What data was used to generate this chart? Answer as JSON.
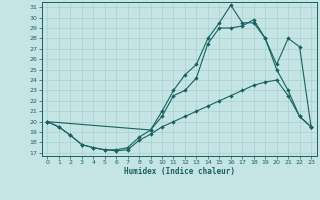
{
  "xlabel": "Humidex (Indice chaleur)",
  "bg_color": "#c5e5e5",
  "line_color": "#1a6060",
  "grid_color": "#a8d0d0",
  "xlim_min": -0.5,
  "xlim_max": 23.5,
  "ylim_min": 16.7,
  "ylim_max": 31.5,
  "xticks": [
    0,
    1,
    2,
    3,
    4,
    5,
    6,
    7,
    8,
    9,
    10,
    11,
    12,
    13,
    14,
    15,
    16,
    17,
    18,
    19,
    20,
    21,
    22,
    23
  ],
  "yticks": [
    17,
    18,
    19,
    20,
    21,
    22,
    23,
    24,
    25,
    26,
    27,
    28,
    29,
    30,
    31
  ],
  "s1_x": [
    0,
    1,
    2,
    3,
    4,
    5,
    6,
    7,
    8,
    9,
    10,
    11,
    12,
    13,
    14,
    15,
    16,
    17,
    18,
    19,
    20,
    21,
    22,
    23
  ],
  "s1_y": [
    20.0,
    19.5,
    18.7,
    17.8,
    17.5,
    17.3,
    17.2,
    17.3,
    18.2,
    18.8,
    19.5,
    20.0,
    20.5,
    21.0,
    21.5,
    22.0,
    22.5,
    23.0,
    23.5,
    23.8,
    24.0,
    22.5,
    20.5,
    19.5
  ],
  "s2_x": [
    0,
    1,
    2,
    3,
    4,
    5,
    6,
    7,
    8,
    9,
    10,
    11,
    12,
    13,
    14,
    15,
    16,
    17,
    18,
    19,
    20,
    21,
    22,
    23
  ],
  "s2_y": [
    20.0,
    19.5,
    18.7,
    17.8,
    17.5,
    17.3,
    17.3,
    17.5,
    18.5,
    19.2,
    21.0,
    23.0,
    24.5,
    25.5,
    28.0,
    29.5,
    31.2,
    29.5,
    29.5,
    28.0,
    25.0,
    23.0,
    20.5,
    19.5
  ],
  "s3_x": [
    0,
    9,
    10,
    11,
    12,
    13,
    14,
    15,
    16,
    17,
    18,
    19,
    20,
    21,
    22,
    23
  ],
  "s3_y": [
    20.0,
    19.2,
    20.5,
    22.5,
    23.0,
    24.2,
    27.5,
    29.0,
    29.0,
    29.2,
    29.8,
    28.0,
    25.5,
    28.0,
    27.2,
    19.5
  ]
}
